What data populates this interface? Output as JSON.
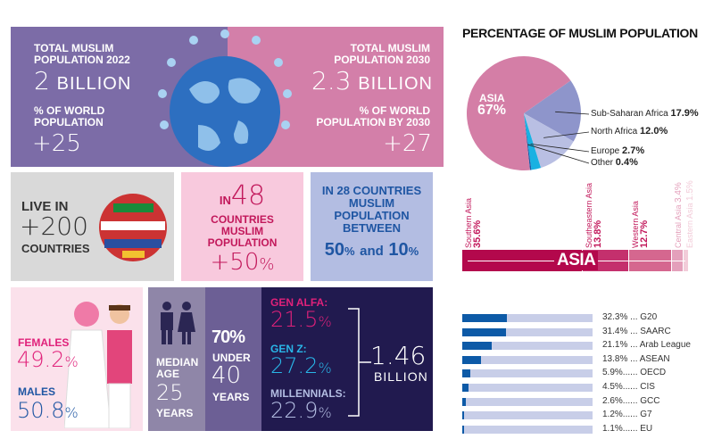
{
  "banner": {
    "left": {
      "label1": "TOTAL MUSLIM POPULATION 2022",
      "value1": "2",
      "unit1": "BILLION",
      "label2": "% OF WORLD POPULATION",
      "value2": "+25"
    },
    "right": {
      "label1": "TOTAL MUSLIM POPULATION 2030",
      "value1": "2.3",
      "unit1": "BILLION",
      "label2": "% OF WORLD POPULATION BY 2030",
      "value2": "+27"
    }
  },
  "live": {
    "line1": "LIVE IN",
    "value": "+200",
    "line2": "COUNTRIES"
  },
  "box48": {
    "prefix": "IN",
    "value": "48",
    "text": "COUNTRIES MUSLIM POPULATION",
    "pct": "+50",
    "pct_sign": "%"
  },
  "box28": {
    "text": "IN 28 COUNTRIES MUSLIM POPULATION BETWEEN",
    "v1": "50",
    "v2": "10",
    "and": "and",
    "pct": "%"
  },
  "gender": {
    "females_label": "FEMALES",
    "females": "49.2",
    "males_label": "MALES",
    "males": "50.8",
    "pct": "%"
  },
  "median": {
    "label": "MEDIAN AGE",
    "value": "25",
    "unit": "YEARS"
  },
  "under40": {
    "pct": "70%",
    "line1": "UNDER",
    "value": "40",
    "unit": "YEARS"
  },
  "gens": {
    "items": [
      {
        "label": "GEN ALFA:",
        "value": "21.5"
      },
      {
        "label": "GEN Z:",
        "value": "27.2"
      },
      {
        "label": "MILLENNIALS:",
        "value": "22.9"
      }
    ],
    "pct": "%",
    "total": "1.46",
    "total_unit": "BILLION"
  },
  "pie": {
    "title": "PERCENTAGE OF MUSLIM POPULATION",
    "asia_label": "ASIA",
    "asia_value": "67%",
    "slices": [
      {
        "name": "Asia",
        "value": 67,
        "color": "#d47ea6"
      },
      {
        "name": "Sub-Saharan Africa",
        "value": 17.9,
        "color": "#8e95cb",
        "label": "17.9%"
      },
      {
        "name": "North Africa",
        "value": 12.0,
        "color": "#b9bfe3",
        "label": "12.0%"
      },
      {
        "name": "Europe",
        "value": 2.7,
        "color": "#19b1e2",
        "label": "2.7%"
      },
      {
        "name": "Other",
        "value": 0.4,
        "color": "#1a5ea8",
        "label": "0.4%"
      }
    ]
  },
  "asia_bar": {
    "label": "ASIA",
    "segments": [
      {
        "name": "Southern Asia",
        "value": "35.6%",
        "num": 35.6,
        "color": "#b3084c"
      },
      {
        "name": "Southeastern Asia",
        "value": "13.8%",
        "num": 13.8,
        "color": "#c4306d"
      },
      {
        "name": "Western Asia",
        "value": "12.7%",
        "num": 12.7,
        "color": "#d5678f"
      },
      {
        "name": "Central Asia",
        "value": "3.4%",
        "num": 3.4,
        "color": "#e4a0bb"
      },
      {
        "name": "Eastern Asia",
        "value": "1.5%",
        "num": 1.5,
        "color": "#f2ccd9"
      }
    ]
  },
  "groups": [
    {
      "pct": "32.3%",
      "dots": " ... ",
      "name": "G20",
      "v": 32.3
    },
    {
      "pct": "31.4%",
      "dots": " ... ",
      "name": "SAARC",
      "v": 31.4
    },
    {
      "pct": "21.1%",
      "dots": " ... ",
      "name": "Arab League",
      "v": 21.1
    },
    {
      "pct": "13.8%",
      "dots": " ... ",
      "name": "ASEAN",
      "v": 13.8
    },
    {
      "pct": "5.9%",
      "dots": "...... ",
      "name": "OECD",
      "v": 5.9
    },
    {
      "pct": "4.5%",
      "dots": "...... ",
      "name": "CIS",
      "v": 4.5
    },
    {
      "pct": "2.6%",
      "dots": "...... ",
      "name": "GCC",
      "v": 2.6
    },
    {
      "pct": "1.2%",
      "dots": "...... ",
      "name": "G7",
      "v": 1.2
    },
    {
      "pct": "1.1%",
      "dots": "...... ",
      "name": "EU",
      "v": 1.1
    }
  ]
}
